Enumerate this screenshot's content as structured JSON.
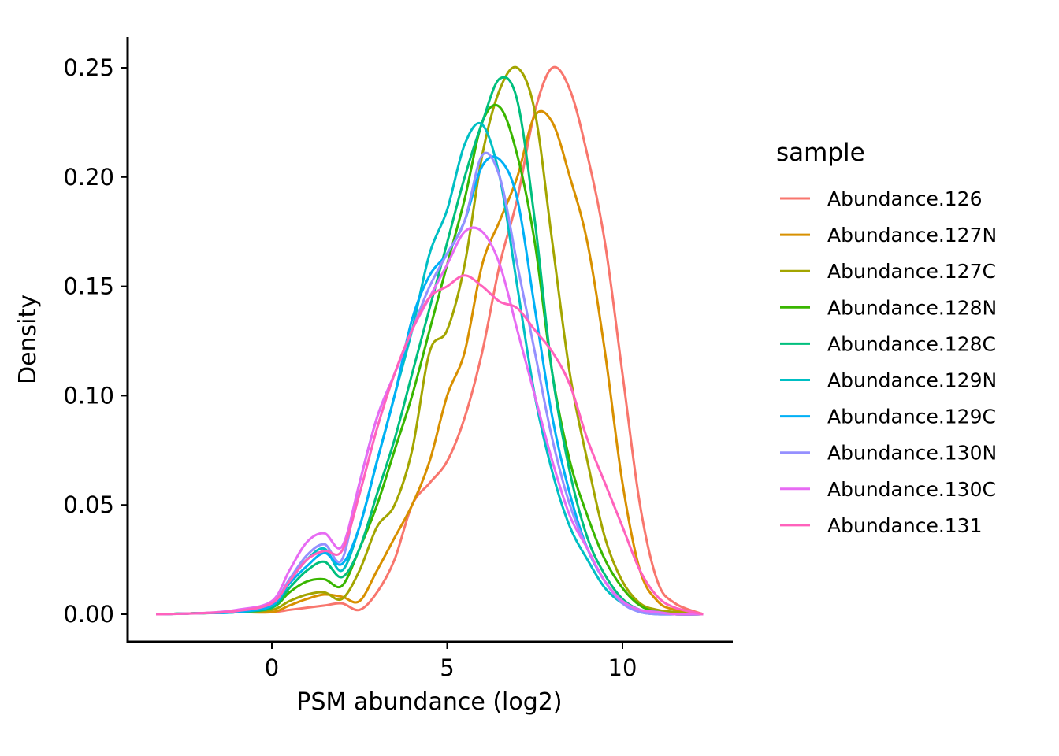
{
  "chart_data": {
    "type": "line",
    "title": "",
    "xlabel": "PSM abundance (log2)",
    "ylabel": "Density",
    "xlim": [
      -3.3,
      12.3
    ],
    "ylim": [
      0,
      0.25
    ],
    "grid": false,
    "xticks": [
      0,
      5,
      10
    ],
    "xtick_labels": [
      "0",
      "5",
      "10"
    ],
    "yticks": [
      0,
      0.05,
      0.1,
      0.15,
      0.2,
      0.25
    ],
    "ytick_labels": [
      "0.00",
      "0.05",
      "0.10",
      "0.15",
      "0.20",
      "0.25"
    ],
    "legend": {
      "title": "sample",
      "placement": "right"
    },
    "x": [
      -3.3,
      -2,
      -1,
      0,
      0.5,
      1,
      1.5,
      2,
      2.5,
      3,
      3.5,
      4,
      4.5,
      5,
      5.5,
      6,
      6.5,
      7,
      7.5,
      8,
      8.5,
      9,
      9.5,
      10,
      10.5,
      11,
      11.5,
      12.3
    ],
    "series": [
      {
        "name": "Abundance.126",
        "color": "#F8766D",
        "values": [
          0,
          0.0005,
          0.001,
          0.001,
          0.002,
          0.003,
          0.004,
          0.005,
          0.002,
          0.01,
          0.025,
          0.05,
          0.06,
          0.07,
          0.09,
          0.12,
          0.16,
          0.19,
          0.23,
          0.25,
          0.24,
          0.21,
          0.17,
          0.11,
          0.05,
          0.015,
          0.005,
          0
        ]
      },
      {
        "name": "Abundance.127N",
        "color": "#D89000",
        "values": [
          0,
          0.0005,
          0.001,
          0.001,
          0.004,
          0.007,
          0.009,
          0.008,
          0.006,
          0.02,
          0.035,
          0.05,
          0.07,
          0.1,
          0.12,
          0.16,
          0.18,
          0.2,
          0.228,
          0.225,
          0.2,
          0.17,
          0.12,
          0.06,
          0.02,
          0.006,
          0.002,
          0
        ]
      },
      {
        "name": "Abundance.127C",
        "color": "#A3A500",
        "values": [
          0,
          0.0005,
          0.001,
          0.002,
          0.006,
          0.009,
          0.01,
          0.007,
          0.02,
          0.04,
          0.05,
          0.075,
          0.12,
          0.13,
          0.16,
          0.21,
          0.24,
          0.25,
          0.23,
          0.17,
          0.11,
          0.07,
          0.035,
          0.015,
          0.005,
          0.002,
          0.001,
          0
        ]
      },
      {
        "name": "Abundance.128N",
        "color": "#39B600",
        "values": [
          0,
          0.0005,
          0.001,
          0.003,
          0.01,
          0.015,
          0.016,
          0.013,
          0.03,
          0.05,
          0.075,
          0.1,
          0.13,
          0.16,
          0.19,
          0.225,
          0.232,
          0.21,
          0.17,
          0.11,
          0.07,
          0.045,
          0.025,
          0.012,
          0.004,
          0.001,
          0,
          0
        ]
      },
      {
        "name": "Abundance.128C",
        "color": "#00BF7D",
        "values": [
          0,
          0.0005,
          0.001,
          0.003,
          0.012,
          0.02,
          0.024,
          0.017,
          0.03,
          0.055,
          0.08,
          0.11,
          0.14,
          0.17,
          0.2,
          0.225,
          0.245,
          0.235,
          0.18,
          0.11,
          0.065,
          0.035,
          0.018,
          0.007,
          0.002,
          0.001,
          0,
          0
        ]
      },
      {
        "name": "Abundance.129N",
        "color": "#00BFC4",
        "values": [
          0,
          0.0005,
          0.001,
          0.004,
          0.015,
          0.025,
          0.03,
          0.02,
          0.04,
          0.07,
          0.1,
          0.13,
          0.165,
          0.185,
          0.215,
          0.224,
          0.2,
          0.15,
          0.1,
          0.065,
          0.04,
          0.025,
          0.012,
          0.005,
          0.001,
          0,
          0,
          0
        ]
      },
      {
        "name": "Abundance.129C",
        "color": "#00B0F6",
        "values": [
          0,
          0.0005,
          0.001,
          0.004,
          0.014,
          0.022,
          0.028,
          0.023,
          0.04,
          0.07,
          0.1,
          0.135,
          0.155,
          0.165,
          0.18,
          0.205,
          0.208,
          0.19,
          0.14,
          0.09,
          0.055,
          0.03,
          0.015,
          0.006,
          0.002,
          0.001,
          0,
          0
        ]
      },
      {
        "name": "Abundance.130N",
        "color": "#9590FF",
        "values": [
          0,
          0.0005,
          0.0015,
          0.005,
          0.016,
          0.027,
          0.032,
          0.025,
          0.06,
          0.09,
          0.11,
          0.13,
          0.15,
          0.165,
          0.18,
          0.21,
          0.2,
          0.16,
          0.12,
          0.08,
          0.05,
          0.03,
          0.015,
          0.005,
          0.001,
          0,
          0,
          0
        ]
      },
      {
        "name": "Abundance.130C",
        "color": "#E76BF3",
        "values": [
          0,
          0.0005,
          0.002,
          0.006,
          0.02,
          0.033,
          0.037,
          0.031,
          0.06,
          0.09,
          0.11,
          0.13,
          0.145,
          0.16,
          0.175,
          0.175,
          0.16,
          0.13,
          0.1,
          0.07,
          0.045,
          0.03,
          0.015,
          0.006,
          0.002,
          0.001,
          0,
          0
        ]
      },
      {
        "name": "Abundance.131",
        "color": "#FF62BC",
        "values": [
          0,
          0.0005,
          0.0015,
          0.005,
          0.015,
          0.025,
          0.029,
          0.029,
          0.055,
          0.085,
          0.11,
          0.13,
          0.145,
          0.15,
          0.155,
          0.15,
          0.143,
          0.14,
          0.13,
          0.12,
          0.105,
          0.08,
          0.06,
          0.04,
          0.02,
          0.008,
          0.003,
          0
        ]
      }
    ]
  }
}
